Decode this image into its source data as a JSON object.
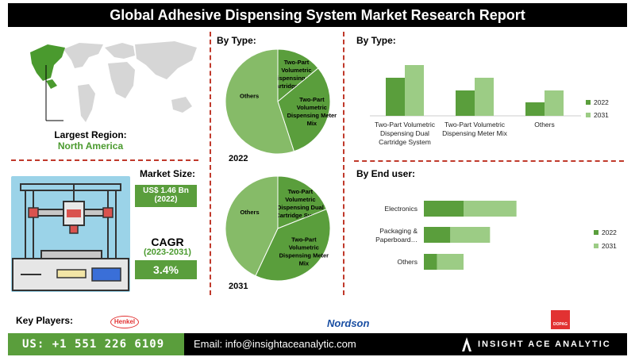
{
  "header": {
    "title": "Global Adhesive Dispensing System Market Research Report"
  },
  "region": {
    "label": "Largest Region:",
    "value": "North America"
  },
  "market": {
    "size_label": "Market Size:",
    "size_value": "US$ 1.46 Bn",
    "size_year": "(2022)",
    "cagr_label": "CAGR",
    "cagr_period": "(2023-2031)",
    "cagr_value": "3.4%"
  },
  "colors": {
    "dark_green": "#5a9e3c",
    "light_green": "#9ccc85",
    "pie_green": "#86bb68",
    "accent_red": "#c0392b"
  },
  "footer": {
    "key_players_label": "Key Players:",
    "players": [
      "Henkel",
      "Nordson",
      "DOPAG"
    ],
    "phone": "US: +1 551 226 6109",
    "email": "Email: info@insightaceanalytic.com",
    "brand": "INSIGHT ACE ANALYTIC"
  },
  "chart_data": [
    {
      "type": "pie",
      "title": "By Type:",
      "year": "2022",
      "labels": [
        "Two-Part Volumetric Dispensing Dual Cartridge System",
        "Two-Part Volumetric Dispensing Meter Mix",
        "Others"
      ],
      "values": [
        14,
        31,
        55
      ]
    },
    {
      "type": "pie",
      "year": "2031",
      "labels": [
        "Two-Part Volumetric Dispensing Dual Cartridge System",
        "Two-Part Volumetric Dispensing Meter Mix",
        "Others"
      ],
      "values": [
        19,
        38,
        43
      ]
    },
    {
      "type": "bar",
      "title": "By Type:",
      "categories": [
        "Two-Part Volumetric Dispensing Dual Cartridge System",
        "Two-Part Volumetric Dispensing Meter Mix",
        "Others"
      ],
      "series": [
        {
          "name": "2022",
          "values": [
            0.48,
            0.32,
            0.17
          ]
        },
        {
          "name": "2031",
          "values": [
            0.64,
            0.48,
            0.32
          ]
        }
      ],
      "ylim": [
        0,
        0.8
      ]
    },
    {
      "type": "bar",
      "orientation": "horizontal",
      "stacked": true,
      "title": "By End user:",
      "categories": [
        "Electronics",
        "Packaging & Paperboard…",
        "Others"
      ],
      "series": [
        {
          "name": "2022",
          "values": [
            0.3,
            0.2,
            0.1
          ]
        },
        {
          "name": "2031",
          "values": [
            0.4,
            0.3,
            0.2
          ]
        }
      ],
      "xlim": [
        0,
        1.2
      ]
    }
  ]
}
